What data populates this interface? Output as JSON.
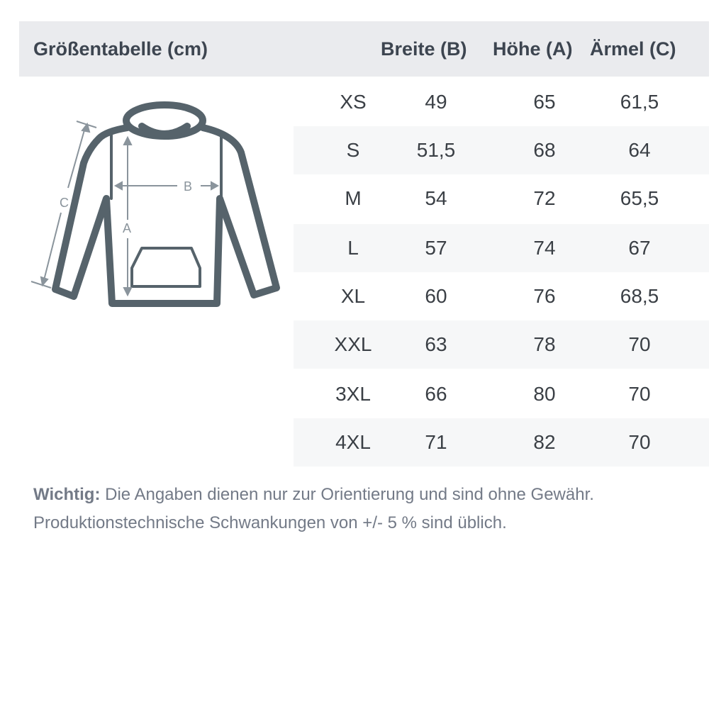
{
  "header": {
    "title": "Größentabelle (cm)",
    "columns": [
      "Breite (B)",
      "Höhe (A)",
      "Ärmel (C)"
    ]
  },
  "diagram": {
    "labels": {
      "a": "A",
      "b": "B",
      "c": "C"
    },
    "icon": "hoodie-measurement-diagram",
    "stroke_color": "#56636b",
    "guide_color": "#8a949c"
  },
  "rows": [
    {
      "size": "XS",
      "breite": "49",
      "hoehe": "65",
      "aermel": "61,5"
    },
    {
      "size": "S",
      "breite": "51,5",
      "hoehe": "68",
      "aermel": "64"
    },
    {
      "size": "M",
      "breite": "54",
      "hoehe": "72",
      "aermel": "65,5"
    },
    {
      "size": "L",
      "breite": "57",
      "hoehe": "74",
      "aermel": "67"
    },
    {
      "size": "XL",
      "breite": "60",
      "hoehe": "76",
      "aermel": "68,5"
    },
    {
      "size": "XXL",
      "breite": "63",
      "hoehe": "78",
      "aermel": "70"
    },
    {
      "size": "3XL",
      "breite": "66",
      "hoehe": "80",
      "aermel": "70"
    },
    {
      "size": "4XL",
      "breite": "71",
      "hoehe": "82",
      "aermel": "70"
    }
  ],
  "note": {
    "label": "Wichtig:",
    "line1": " Die Angaben dienen nur zur Orientierung und sind ohne Gewähr.",
    "line2": "Produktionstechnische Schwankungen von +/- 5 % sind üblich."
  }
}
